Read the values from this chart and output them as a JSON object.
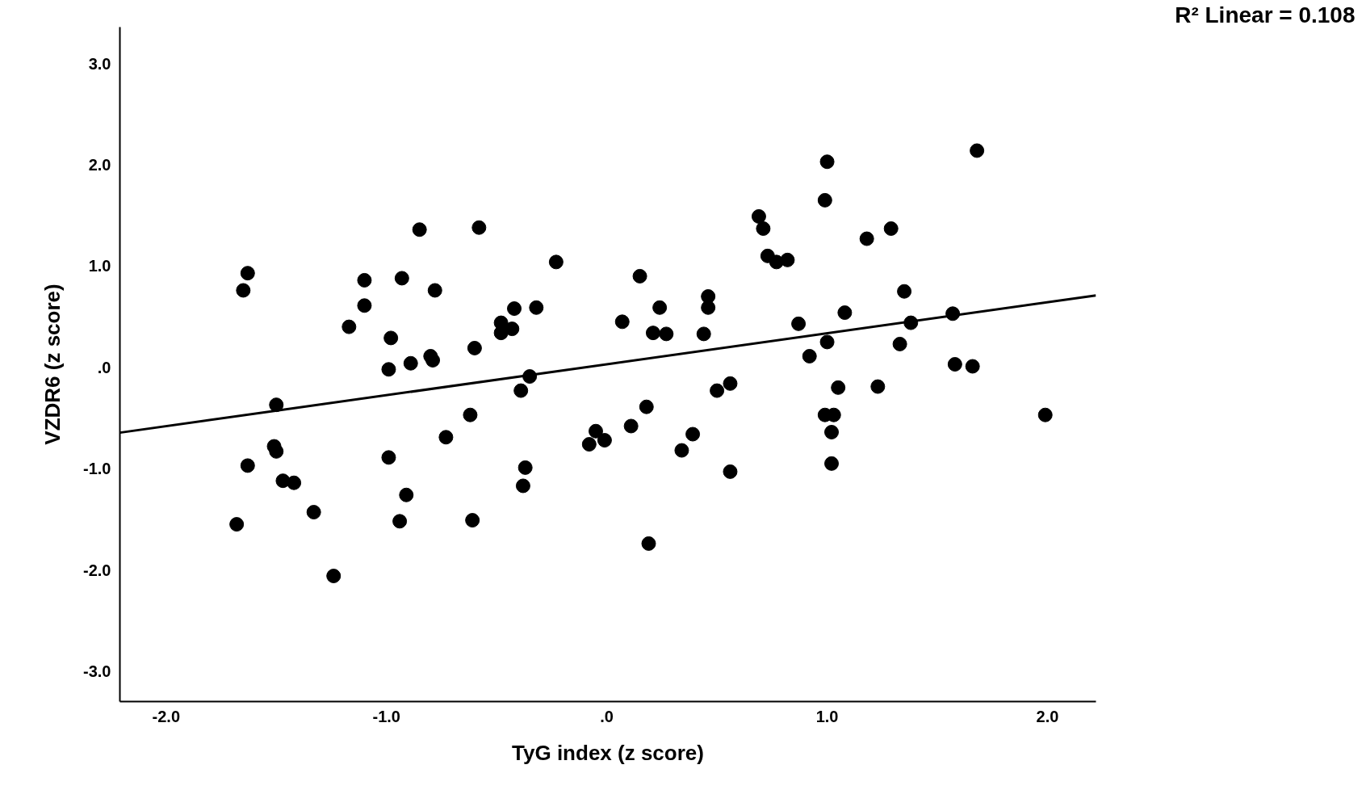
{
  "chart_data": {
    "type": "scatter",
    "xlabel": "TyG index (z score)",
    "ylabel": "VZDR6 (z score)",
    "annotations": [
      "R² Linear = 0.108"
    ],
    "xlim": [
      -2.21,
      2.22
    ],
    "ylim": [
      -3.3,
      3.36
    ],
    "xticks": [
      {
        "value": -2,
        "label": "-2.0"
      },
      {
        "value": -1,
        "label": "-1.0"
      },
      {
        "value": 0,
        "label": ".0"
      },
      {
        "value": 1,
        "label": "1.0"
      },
      {
        "value": 2,
        "label": "2.0"
      }
    ],
    "yticks": [
      {
        "value": -3,
        "label": "-3.0"
      },
      {
        "value": -2,
        "label": "-2.0"
      },
      {
        "value": -1,
        "label": "-1.0"
      },
      {
        "value": 0,
        "label": ".0"
      },
      {
        "value": 1,
        "label": "1.0"
      },
      {
        "value": 2,
        "label": "2.0"
      },
      {
        "value": 3,
        "label": "3.0"
      }
    ],
    "grid": false,
    "marker": "circle",
    "series": [
      {
        "type": "scatter",
        "color": "#000000",
        "x": [
          -1.65,
          -1.63,
          -1.63,
          -1.68,
          -1.5,
          -1.51,
          -1.5,
          -1.47,
          -1.42,
          -1.33,
          -1.24,
          -1.17,
          -1.1,
          -1.1,
          -0.98,
          -0.99,
          -0.99,
          -0.93,
          -0.94,
          -0.91,
          -0.89,
          -0.85,
          -0.8,
          -0.79,
          -0.78,
          -0.73,
          -0.62,
          -0.6,
          -0.61,
          -0.58,
          -0.48,
          -0.48,
          -0.43,
          -0.42,
          -0.39,
          -0.38,
          -0.37,
          -0.35,
          -0.32,
          -0.23,
          -0.08,
          -0.05,
          -0.01,
          0.07,
          0.11,
          0.15,
          0.18,
          0.19,
          0.21,
          0.24,
          0.27,
          0.34,
          0.39,
          0.44,
          0.46,
          0.46,
          0.5,
          0.56,
          0.56,
          0.69,
          0.71,
          0.73,
          0.77,
          0.82,
          0.87,
          0.92,
          1.0,
          0.99,
          1.0,
          0.99,
          1.03,
          1.02,
          1.02,
          1.05,
          1.08,
          1.18,
          1.23,
          1.29,
          1.33,
          1.35,
          1.38,
          1.57,
          1.58,
          1.66,
          1.68,
          1.99
        ],
        "values": [
          0.76,
          0.93,
          -0.97,
          -1.55,
          -0.37,
          -0.78,
          -0.83,
          -1.12,
          -1.14,
          -1.43,
          -2.06,
          0.4,
          0.61,
          0.86,
          0.29,
          -0.02,
          -0.89,
          0.88,
          -1.52,
          -1.26,
          0.04,
          1.36,
          0.11,
          0.07,
          0.76,
          -0.69,
          -0.47,
          0.19,
          -1.51,
          1.38,
          0.34,
          0.44,
          0.38,
          0.58,
          -0.23,
          -1.17,
          -0.99,
          -0.09,
          0.59,
          1.04,
          -0.76,
          -0.63,
          -0.72,
          0.45,
          -0.58,
          0.9,
          -0.39,
          -1.74,
          0.34,
          0.59,
          0.33,
          -0.82,
          -0.66,
          0.33,
          0.7,
          0.59,
          -0.23,
          -0.16,
          -1.03,
          1.49,
          1.37,
          1.1,
          1.04,
          1.06,
          0.43,
          0.11,
          2.03,
          1.65,
          0.25,
          -0.47,
          -0.47,
          -0.64,
          -0.95,
          -0.2,
          0.54,
          1.27,
          -0.19,
          1.37,
          0.23,
          0.75,
          0.44,
          0.53,
          0.03,
          0.01,
          2.14,
          -0.47
        ]
      },
      {
        "type": "line",
        "marker": "none",
        "color": "#000000",
        "x": [
          -2.21,
          2.22
        ],
        "values": [
          -0.645,
          0.71
        ]
      }
    ]
  }
}
